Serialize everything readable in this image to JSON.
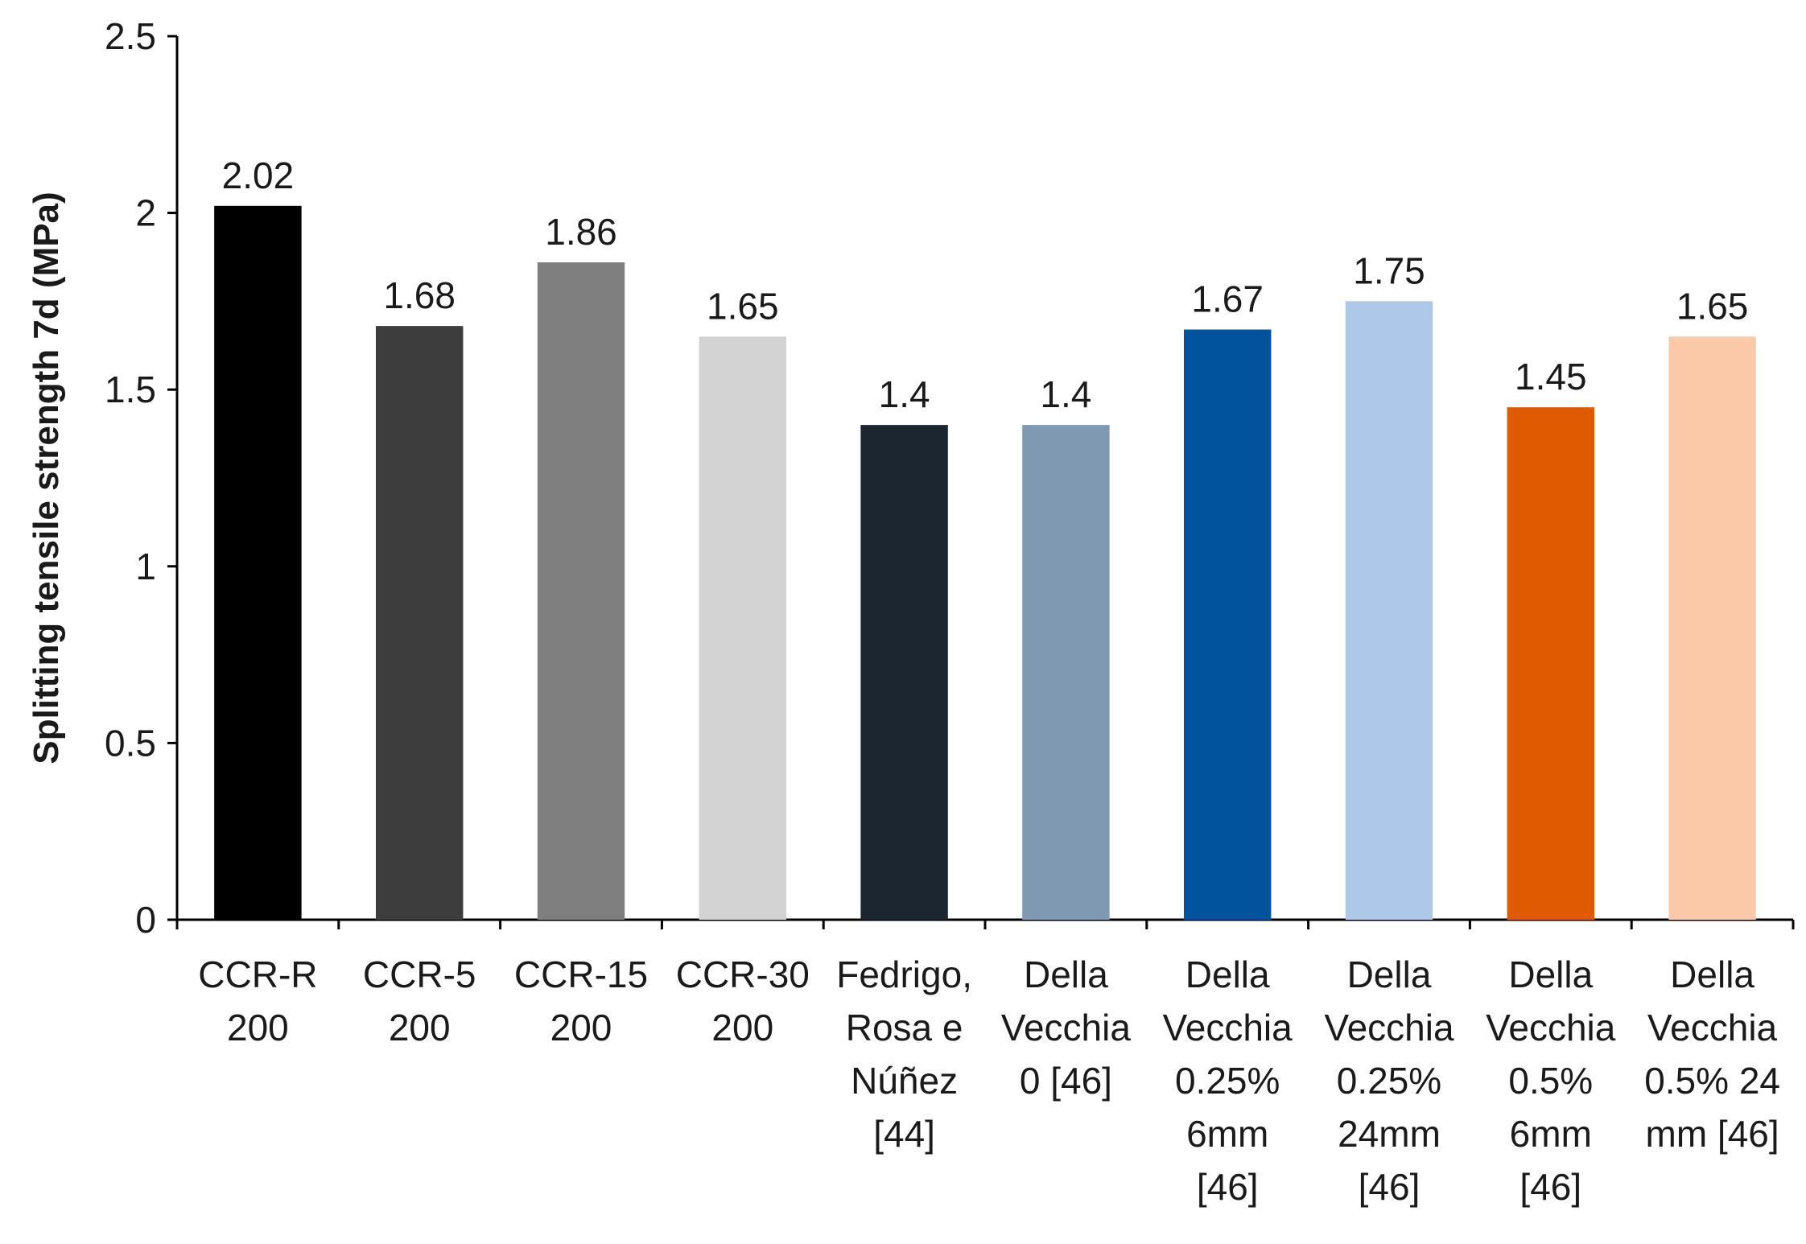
{
  "chart_data": {
    "type": "bar",
    "title": "",
    "xlabel": "",
    "ylabel": "Splitting tensile strength 7d (MPa)",
    "ylim": [
      0,
      2.5
    ],
    "yticks": [
      "0",
      "0.5",
      "1",
      "1.5",
      "2",
      "2.5"
    ],
    "grid": false,
    "legend": "none",
    "categories": [
      [
        "CCR-R",
        "200"
      ],
      [
        "CCR-5",
        "200"
      ],
      [
        "CCR-15",
        "200"
      ],
      [
        "CCR-30",
        "200"
      ],
      [
        "Fedrigo,",
        "Rosa e",
        "Núñez",
        "[44]"
      ],
      [
        "Della",
        "Vecchia",
        "0 [46]"
      ],
      [
        "Della",
        "Vecchia",
        "0.25%",
        "6mm",
        "[46]"
      ],
      [
        "Della",
        "Vecchia",
        "0.25%",
        "24mm",
        "[46]"
      ],
      [
        "Della",
        "Vecchia",
        "0.5%",
        "6mm",
        "[46]"
      ],
      [
        "Della",
        "Vecchia",
        "0.5% 24",
        "mm [46]"
      ]
    ],
    "values": [
      2.02,
      1.68,
      1.86,
      1.65,
      1.4,
      1.4,
      1.67,
      1.75,
      1.45,
      1.65
    ],
    "data_labels": [
      "2.02",
      "1.68",
      "1.86",
      "1.65",
      "1.4",
      "1.4",
      "1.67",
      "1.75",
      "1.45",
      "1.65"
    ],
    "colors": [
      "#000000",
      "#3d3d3d",
      "#7f7f7f",
      "#d3d3d3",
      "#1b2631",
      "#7f99b3",
      "#00539c",
      "#adc8e8",
      "#e05a00",
      "#fcc9a8"
    ]
  }
}
